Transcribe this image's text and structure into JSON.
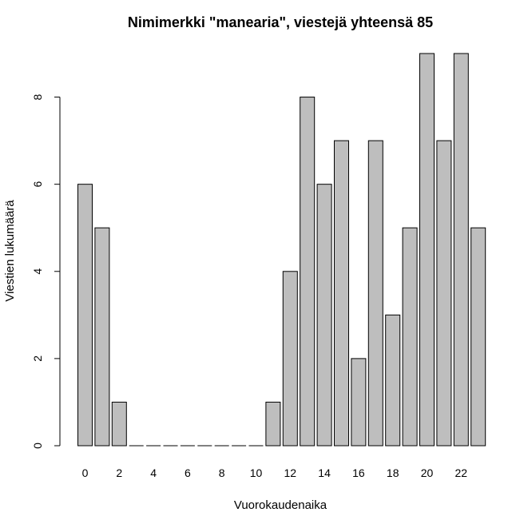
{
  "chart_data": {
    "type": "bar",
    "title": "Nimimerkki \"manearia\", viestejä yhteensä 85",
    "xlabel": "Vuorokaudenaika",
    "ylabel": "Viestien lukumäärä",
    "categories": [
      "0",
      "1",
      "2",
      "3",
      "4",
      "5",
      "6",
      "7",
      "8",
      "9",
      "10",
      "11",
      "12",
      "13",
      "14",
      "15",
      "16",
      "17",
      "18",
      "19",
      "20",
      "21",
      "22",
      "23"
    ],
    "values": [
      6,
      5,
      1,
      0,
      0,
      0,
      0,
      0,
      0,
      0,
      0,
      1,
      4,
      8,
      6,
      7,
      2,
      7,
      3,
      5,
      9,
      7,
      9,
      5
    ],
    "x_tick_labels": [
      "0",
      "2",
      "4",
      "6",
      "8",
      "10",
      "12",
      "14",
      "16",
      "18",
      "20",
      "22"
    ],
    "y_ticks": [
      0,
      2,
      4,
      6,
      8
    ],
    "ylim": [
      0,
      9
    ],
    "bar_fill": "#bebebe",
    "bar_stroke": "#000000",
    "grid": false,
    "legend": "none"
  }
}
